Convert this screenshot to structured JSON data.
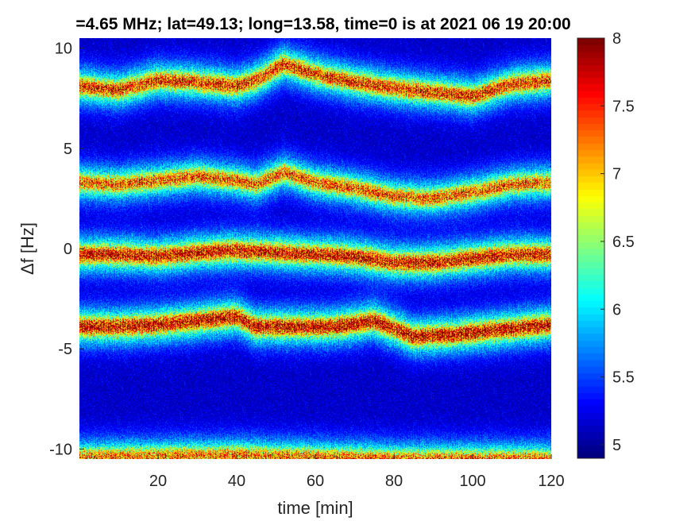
{
  "chart_data": {
    "type": "heatmap",
    "title": "=4.65 MHz;  lat=49.13; long=13.58, time=0 is at 2021 06 19 20:00",
    "xlabel": "time [min]",
    "ylabel": "Δf [Hz]",
    "xlim": [
      0,
      120
    ],
    "ylim": [
      -10.5,
      10.5
    ],
    "x_ticks": [
      20,
      40,
      60,
      80,
      100,
      120
    ],
    "y_ticks": [
      10,
      5,
      0,
      -5,
      -10
    ],
    "colorbar": {
      "min": 4.9,
      "max": 8,
      "ticks": [
        5,
        5.5,
        6,
        6.5,
        7,
        7.5,
        8
      ],
      "colormap": "jet"
    },
    "background_level": 5.0,
    "bands": [
      {
        "name": "band_+8",
        "points": [
          [
            0,
            8.1
          ],
          [
            10,
            7.9
          ],
          [
            20,
            8.4
          ],
          [
            30,
            8.3
          ],
          [
            40,
            8.1
          ],
          [
            45,
            8.4
          ],
          [
            52,
            9.2
          ],
          [
            60,
            8.7
          ],
          [
            70,
            8.3
          ],
          [
            80,
            8.0
          ],
          [
            90,
            7.8
          ],
          [
            100,
            7.6
          ],
          [
            110,
            8.2
          ],
          [
            120,
            8.4
          ]
        ],
        "peak": 7.5
      },
      {
        "name": "band_+3",
        "points": [
          [
            0,
            3.3
          ],
          [
            10,
            3.2
          ],
          [
            20,
            3.4
          ],
          [
            30,
            3.6
          ],
          [
            40,
            3.4
          ],
          [
            45,
            3.2
          ],
          [
            52,
            3.8
          ],
          [
            60,
            3.3
          ],
          [
            70,
            3.0
          ],
          [
            80,
            2.6
          ],
          [
            90,
            2.5
          ],
          [
            100,
            2.8
          ],
          [
            110,
            3.2
          ],
          [
            120,
            3.3
          ]
        ],
        "peak": 7.3
      },
      {
        "name": "band_0",
        "points": [
          [
            0,
            -0.3
          ],
          [
            10,
            -0.3
          ],
          [
            20,
            -0.4
          ],
          [
            30,
            -0.2
          ],
          [
            40,
            -0.1
          ],
          [
            50,
            -0.2
          ],
          [
            60,
            -0.3
          ],
          [
            70,
            -0.4
          ],
          [
            80,
            -0.7
          ],
          [
            90,
            -0.7
          ],
          [
            100,
            -0.5
          ],
          [
            110,
            -0.3
          ],
          [
            120,
            -0.3
          ]
        ],
        "peak": 7.7
      },
      {
        "name": "band_-4",
        "points": [
          [
            0,
            -3.9
          ],
          [
            10,
            -3.9
          ],
          [
            20,
            -3.8
          ],
          [
            30,
            -3.6
          ],
          [
            40,
            -3.4
          ],
          [
            45,
            -3.9
          ],
          [
            55,
            -3.9
          ],
          [
            65,
            -3.9
          ],
          [
            75,
            -3.6
          ],
          [
            85,
            -4.4
          ],
          [
            95,
            -4.3
          ],
          [
            105,
            -4.1
          ],
          [
            120,
            -3.8
          ]
        ],
        "peak": 7.8
      },
      {
        "name": "band_-10.5",
        "points": [
          [
            0,
            -10.4
          ],
          [
            40,
            -10.3
          ],
          [
            80,
            -10.5
          ],
          [
            120,
            -10.5
          ]
        ],
        "peak": 7.2
      }
    ]
  }
}
